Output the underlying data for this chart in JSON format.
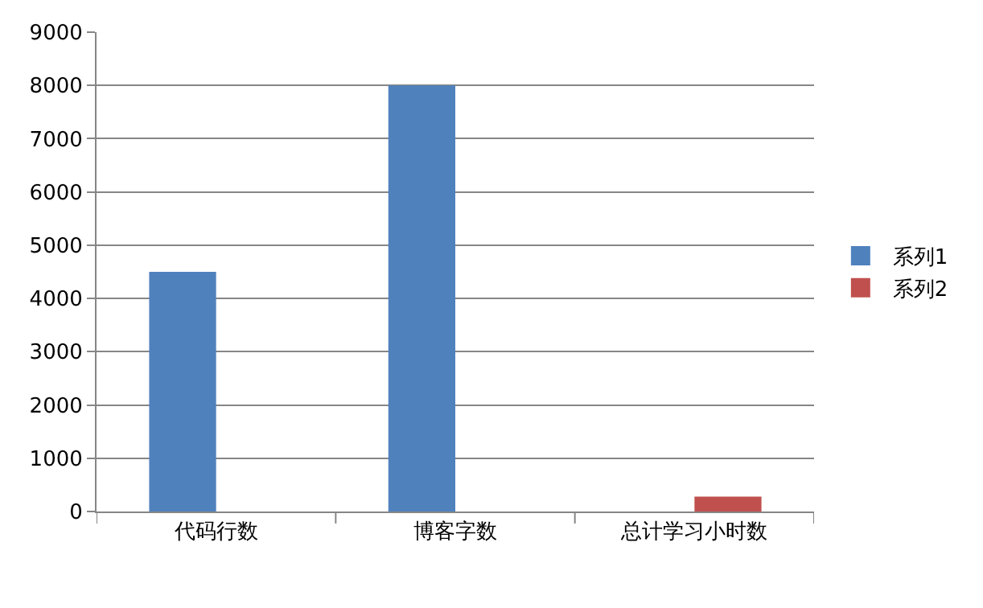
{
  "chart_data": {
    "type": "bar",
    "categories": [
      "代码行数",
      "博客字数",
      "总计学习小时数"
    ],
    "series": [
      {
        "name": "系列1",
        "color": "#4f81bd",
        "values": [
          4500,
          8000,
          0
        ]
      },
      {
        "name": "系列2",
        "color": "#c0504d",
        "values": [
          0,
          0,
          280
        ]
      }
    ],
    "ylim": [
      0,
      9000
    ],
    "yticks": [
      0,
      1000,
      2000,
      3000,
      4000,
      5000,
      6000,
      7000,
      8000,
      9000
    ],
    "grid": "y",
    "legend": "right"
  }
}
